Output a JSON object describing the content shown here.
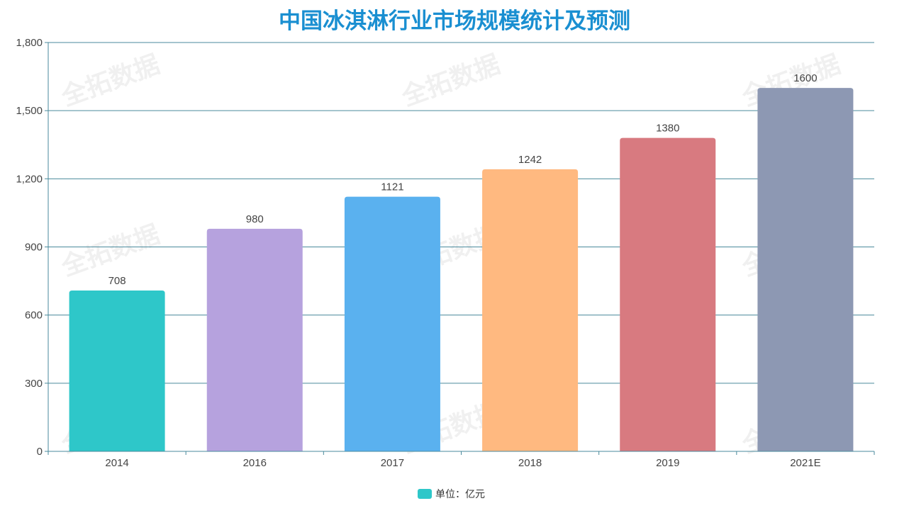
{
  "chart_data": {
    "type": "bar",
    "title": "中国冰淇淋行业市场规模统计及预测",
    "categories": [
      "2014",
      "2016",
      "2017",
      "2018",
      "2019",
      "2021E"
    ],
    "values": [
      708,
      980,
      1121,
      1242,
      1380,
      1600
    ],
    "bar_colors": [
      "#2ec7c9",
      "#b6a2de",
      "#5ab1ef",
      "#ffb980",
      "#d87a80",
      "#8d98b3"
    ],
    "ylim": [
      0,
      1800
    ],
    "yticks": [
      0,
      300,
      600,
      900,
      1200,
      1500,
      1800
    ],
    "ytick_labels": [
      "0",
      "300",
      "600",
      "900",
      "1,200",
      "1,500",
      "1,800"
    ],
    "legend": {
      "label": "单位：亿元",
      "color": "#2ec7c9",
      "position": "bottom-center"
    },
    "grid": true,
    "watermark": "全拓数据"
  }
}
